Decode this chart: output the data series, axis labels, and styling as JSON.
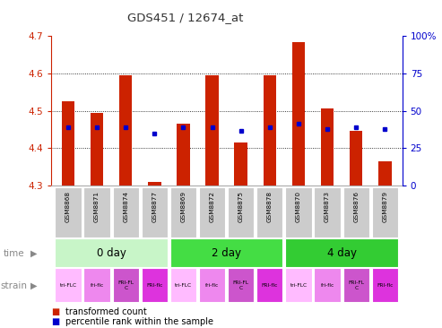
{
  "title": "GDS451 / 12674_at",
  "samples": [
    "GSM8868",
    "GSM8871",
    "GSM8874",
    "GSM8877",
    "GSM8869",
    "GSM8872",
    "GSM8875",
    "GSM8878",
    "GSM8870",
    "GSM8873",
    "GSM8876",
    "GSM8879"
  ],
  "red_values": [
    4.525,
    4.495,
    4.595,
    4.31,
    4.465,
    4.595,
    4.415,
    4.595,
    4.685,
    4.505,
    4.445,
    4.365
  ],
  "blue_values": [
    4.455,
    4.455,
    4.455,
    4.44,
    4.455,
    4.455,
    4.445,
    4.455,
    4.465,
    4.45,
    4.455,
    4.45
  ],
  "y_min": 4.3,
  "y_max": 4.7,
  "y_ticks": [
    4.3,
    4.4,
    4.5,
    4.6,
    4.7
  ],
  "y_right_ticks": [
    0,
    25,
    50,
    75,
    100
  ],
  "y_right_labels": [
    "0",
    "25",
    "50",
    "75",
    "100%"
  ],
  "time_ranges": [
    {
      "s": 0,
      "e": 3,
      "label": "0 day",
      "color": "#c8f5c8"
    },
    {
      "s": 4,
      "e": 7,
      "label": "2 day",
      "color": "#44dd44"
    },
    {
      "s": 8,
      "e": 11,
      "label": "4 day",
      "color": "#33cc33"
    }
  ],
  "strain_labels": [
    "tri-FLC",
    "fri-flc",
    "FRI-FL\nC",
    "FRI-flc",
    "tri-FLC",
    "fri-flc",
    "FRI-FL\nC",
    "FRI-flc",
    "tri-FLC",
    "fri-flc",
    "FRI-FL\nC",
    "FRI-flc"
  ],
  "strain_colors": [
    "#ffbbff",
    "#ee88ee",
    "#cc55cc",
    "#dd33dd",
    "#ffbbff",
    "#ee88ee",
    "#cc55cc",
    "#dd33dd",
    "#ffbbff",
    "#ee88ee",
    "#cc55cc",
    "#dd33dd"
  ],
  "bar_color": "#cc2200",
  "dot_color": "#0000cc",
  "right_axis_color": "#0000cc",
  "left_axis_color": "#cc2200",
  "grid_yticks": [
    4.4,
    4.5,
    4.6
  ]
}
